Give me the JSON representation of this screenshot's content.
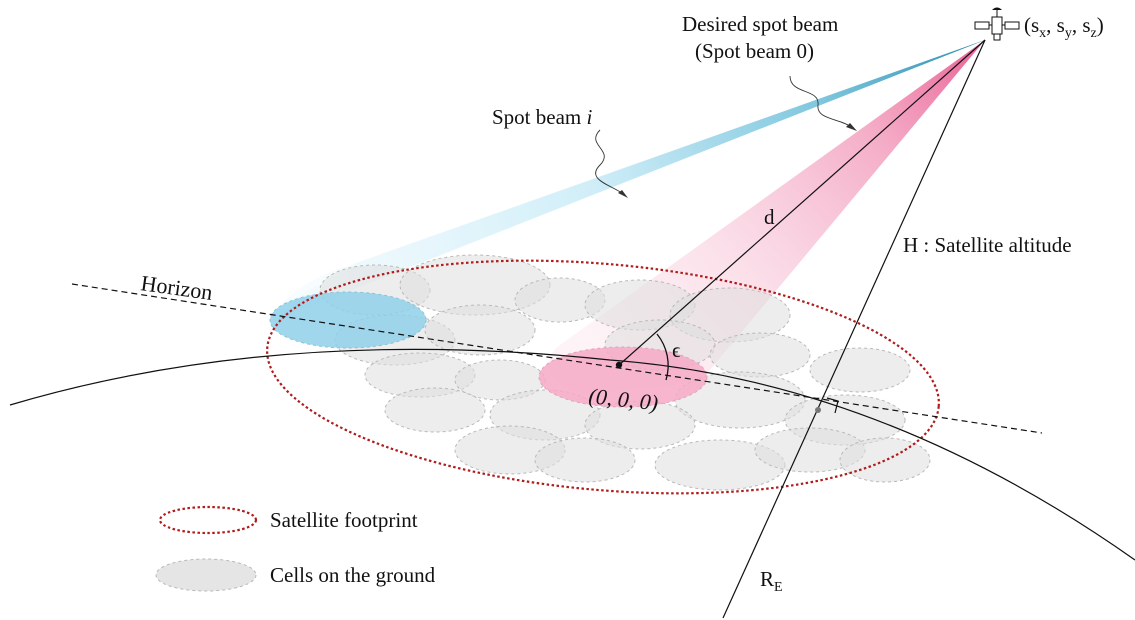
{
  "labels": {
    "desired_beam_line1": "Desired spot beam",
    "desired_beam_line2": "(Spot beam 0)",
    "spot_beam_i_prefix": "Spot beam ",
    "spot_beam_i_var": "i",
    "satellite_coords_prefix": "(s",
    "satellite_coords_x": "x",
    "satellite_coords_sep1": ", s",
    "satellite_coords_y": "y",
    "satellite_coords_sep2": ", s",
    "satellite_coords_z": "z",
    "satellite_coords_suffix": ")",
    "distance": "d",
    "altitude": "H : Satellite altitude",
    "horizon": "Horizon",
    "elevation_angle": "ϵ",
    "origin": "(0, 0, 0)",
    "earth_radius_main": "R",
    "earth_radius_sub": "E"
  },
  "legend": {
    "footprint": "Satellite footprint",
    "cells": "Cells on the ground"
  },
  "colors": {
    "desired_beam": "#f29ab8",
    "interfering_beam": "#2f8fb0",
    "footprint_outline": "#b01c1c",
    "cells": "#dedede"
  }
}
